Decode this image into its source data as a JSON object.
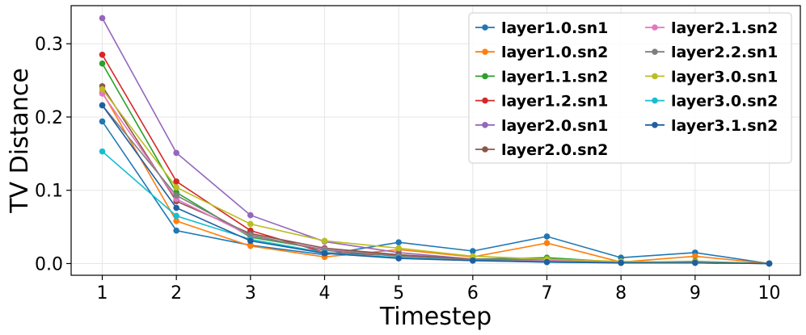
{
  "chart_data": {
    "type": "line",
    "title": "",
    "xlabel": "Timestep",
    "ylabel": "TV Distance",
    "x": [
      1,
      2,
      3,
      4,
      5,
      6,
      7,
      8,
      9,
      10
    ],
    "xlim": [
      0.58,
      10.42
    ],
    "ylim": [
      -0.016,
      0.352
    ],
    "yticks": [
      "0.0",
      "0.1",
      "0.2",
      "0.3"
    ],
    "ytick_values": [
      0.0,
      0.1,
      0.2,
      0.3
    ],
    "grid": true,
    "legend_position": "top-right",
    "legend_columns": 2,
    "series": [
      {
        "name": "layer1.0.sn1",
        "color": "#1f77b4",
        "values": [
          0.194,
          0.045,
          0.025,
          0.012,
          0.029,
          0.017,
          0.037,
          0.008,
          0.015,
          0.0
        ]
      },
      {
        "name": "layer1.0.sn2",
        "color": "#ff7f0e",
        "values": [
          0.234,
          0.058,
          0.024,
          0.009,
          0.019,
          0.009,
          0.028,
          0.002,
          0.01,
          0.0
        ]
      },
      {
        "name": "layer1.1.sn2",
        "color": "#2ca02c",
        "values": [
          0.273,
          0.097,
          0.036,
          0.019,
          0.011,
          0.006,
          0.008,
          0.002,
          0.003,
          0.0
        ]
      },
      {
        "name": "layer1.2.sn1",
        "color": "#d62728",
        "values": [
          0.285,
          0.112,
          0.045,
          0.015,
          0.011,
          0.005,
          0.004,
          0.002,
          0.002,
          0.0
        ]
      },
      {
        "name": "layer2.0.sn1",
        "color": "#9467bd",
        "values": [
          0.335,
          0.151,
          0.066,
          0.03,
          0.015,
          0.006,
          0.005,
          0.002,
          0.002,
          0.0
        ]
      },
      {
        "name": "layer2.0.sn2",
        "color": "#8c564b",
        "values": [
          0.242,
          0.085,
          0.041,
          0.021,
          0.012,
          0.006,
          0.004,
          0.001,
          0.002,
          0.0
        ]
      },
      {
        "name": "layer2.1.sn2",
        "color": "#e377c2",
        "values": [
          0.232,
          0.088,
          0.038,
          0.019,
          0.01,
          0.005,
          0.004,
          0.001,
          0.001,
          0.0
        ]
      },
      {
        "name": "layer2.2.sn1",
        "color": "#7f7f7f",
        "values": [
          0.216,
          0.093,
          0.039,
          0.018,
          0.01,
          0.005,
          0.003,
          0.001,
          0.001,
          0.0
        ]
      },
      {
        "name": "layer3.0.sn1",
        "color": "#bcbd22",
        "values": [
          0.238,
          0.104,
          0.054,
          0.031,
          0.021,
          0.01,
          0.006,
          0.003,
          0.002,
          0.0
        ]
      },
      {
        "name": "layer3.0.sn2",
        "color": "#17becf",
        "values": [
          0.153,
          0.065,
          0.033,
          0.015,
          0.008,
          0.004,
          0.002,
          0.001,
          0.001,
          0.0
        ]
      },
      {
        "name": "layer3.1.sn2",
        "color": "#1f5fa0",
        "values": [
          0.216,
          0.076,
          0.031,
          0.014,
          0.007,
          0.004,
          0.002,
          0.001,
          0.001,
          0.0
        ]
      }
    ]
  }
}
